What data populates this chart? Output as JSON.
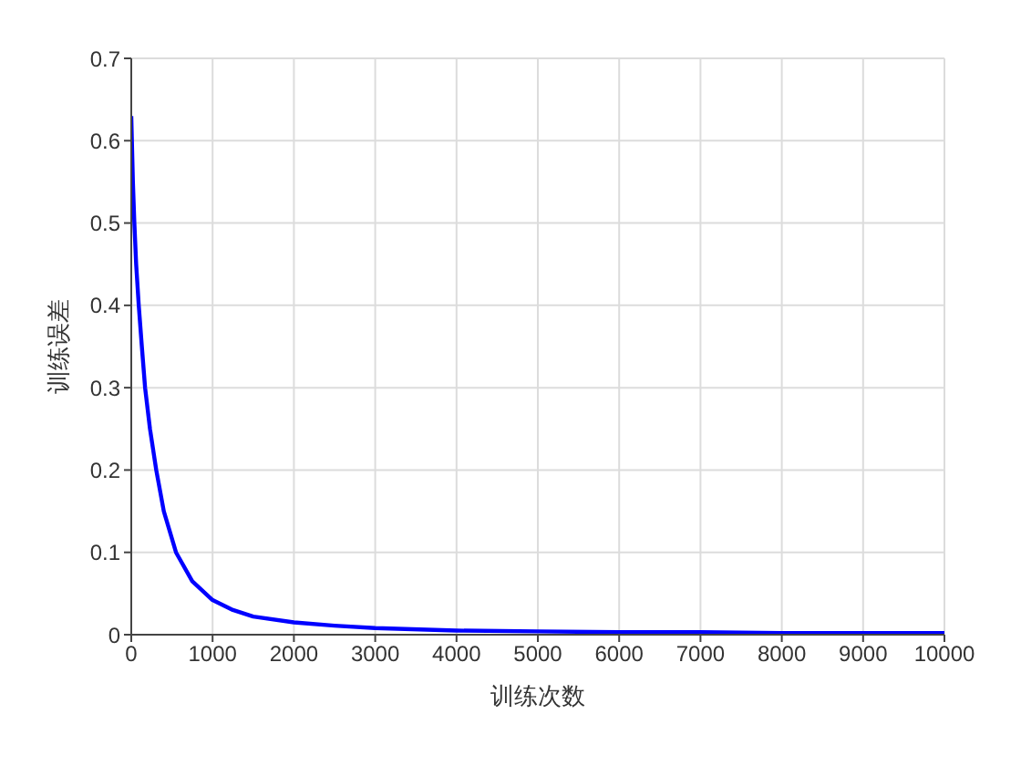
{
  "chart_data": {
    "type": "line",
    "xlabel": "训练次数",
    "ylabel": "训练误差",
    "x": [
      0,
      20,
      38,
      60,
      92,
      130,
      170,
      230,
      307,
      400,
      550,
      750,
      1000,
      1250,
      1500,
      2000,
      2500,
      3000,
      4000,
      5000,
      6000,
      7000,
      8000,
      9000,
      10000
    ],
    "series": [
      {
        "color": "#0000ff",
        "values": [
          0.63,
          0.55,
          0.5,
          0.45,
          0.4,
          0.35,
          0.3,
          0.25,
          0.2,
          0.15,
          0.1,
          0.065,
          0.042,
          0.03,
          0.022,
          0.015,
          0.011,
          0.008,
          0.005,
          0.004,
          0.003,
          0.003,
          0.002,
          0.002,
          0.002
        ]
      }
    ],
    "xlim": [
      0,
      10000
    ],
    "xticks": [
      0,
      1000,
      2000,
      3000,
      4000,
      5000,
      6000,
      7000,
      8000,
      9000,
      10000
    ],
    "ylim": [
      0,
      0.7
    ],
    "yticks": [
      0,
      0.1,
      0.2,
      0.3,
      0.4,
      0.5,
      0.6,
      0.7
    ],
    "grid": true,
    "marker": "none",
    "line_style": "solid"
  }
}
